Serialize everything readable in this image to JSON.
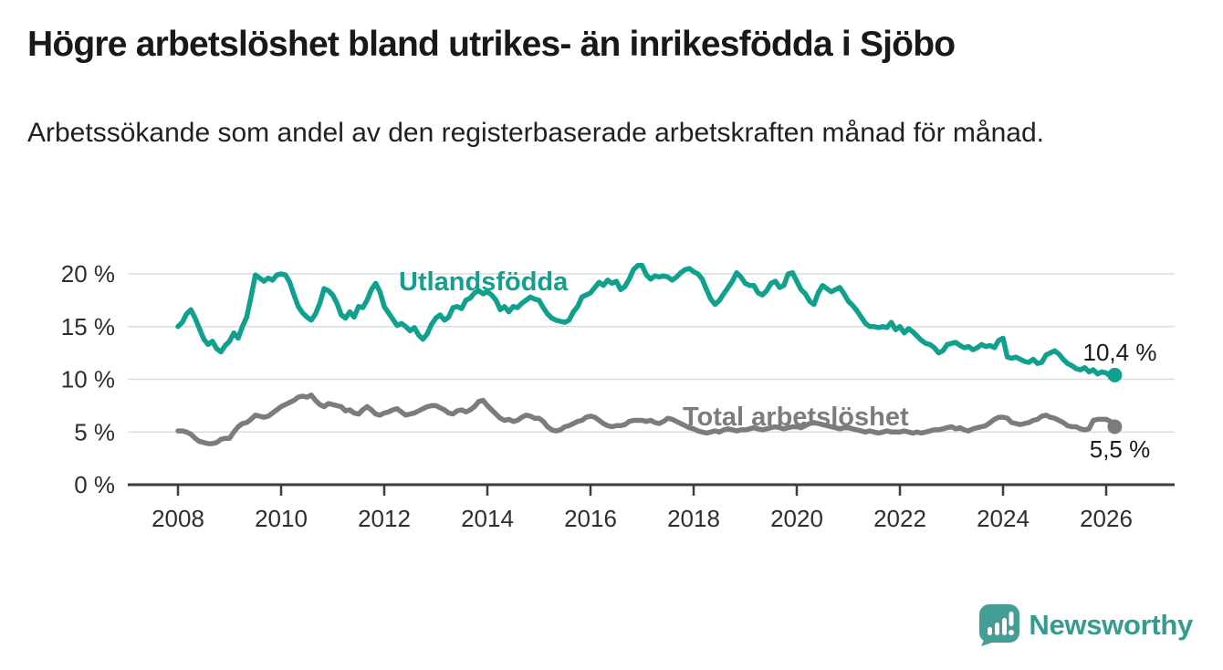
{
  "header": {
    "title": "Högre arbetslöshet bland utrikes- än inrikesfödda i Sjöbo",
    "subtitle": "Arbetssökande som andel av den registerbaserade arbetskraften månad för månad."
  },
  "chart_data": {
    "type": "line",
    "title": "Högre arbetslöshet bland utrikes- än inrikesfödda i Sjöbo",
    "subtitle": "Arbetssökande som andel av den registerbaserade arbetskraften månad för månad.",
    "x_unit": "monthly points, Jan 2008 – Mar 2026",
    "x_range": [
      2008.0,
      2026.25
    ],
    "ylim": [
      0,
      21.5
    ],
    "grid": "horizontal",
    "legend_position": "inline-labels-on-lines",
    "colors": {
      "grid": "#dcdcdc",
      "axis": "#3d3d3d"
    },
    "y_ticks": [
      {
        "value": 0,
        "label": "0 %"
      },
      {
        "value": 5,
        "label": "5 %"
      },
      {
        "value": 10,
        "label": "10 %"
      },
      {
        "value": 15,
        "label": "15 %"
      },
      {
        "value": 20,
        "label": "20 %"
      }
    ],
    "x_ticks": [
      {
        "value": 2008,
        "label": "2008"
      },
      {
        "value": 2010,
        "label": "2010"
      },
      {
        "value": 2012,
        "label": "2012"
      },
      {
        "value": 2014,
        "label": "2014"
      },
      {
        "value": 2016,
        "label": "2016"
      },
      {
        "value": 2018,
        "label": "2018"
      },
      {
        "value": 2020,
        "label": "2020"
      },
      {
        "value": 2022,
        "label": "2022"
      },
      {
        "value": 2024,
        "label": "2024"
      },
      {
        "value": 2026,
        "label": "2026"
      }
    ],
    "series": [
      {
        "id": "utlandsfodda",
        "name": "Utlandsfödda",
        "color": "#10a08e",
        "end_label": "10,4 %",
        "end_value": 10.4,
        "start": "2008-01",
        "frequency": "monthly",
        "values": [
          15.0,
          15.4,
          16.2,
          16.6,
          15.8,
          14.8,
          13.8,
          13.3,
          13.6,
          12.9,
          12.6,
          13.2,
          13.6,
          14.4,
          13.9,
          15.0,
          15.9,
          17.8,
          19.9,
          19.6,
          19.3,
          19.6,
          19.4,
          19.9,
          20.0,
          19.9,
          19.2,
          18.0,
          16.9,
          16.3,
          15.9,
          15.6,
          16.2,
          17.2,
          18.6,
          18.4,
          18.0,
          17.2,
          16.1,
          15.8,
          16.4,
          15.9,
          16.9,
          16.8,
          17.5,
          18.5,
          19.1,
          18.3,
          16.9,
          16.3,
          15.7,
          15.1,
          15.3,
          15.0,
          14.6,
          14.9,
          14.2,
          13.8,
          14.3,
          15.2,
          15.8,
          16.1,
          15.6,
          15.9,
          16.8,
          16.9,
          16.7,
          17.5,
          17.7,
          18.2,
          18.4,
          18.1,
          18.3,
          18.0,
          17.5,
          16.6,
          16.9,
          16.4,
          16.9,
          16.8,
          17.2,
          17.5,
          17.8,
          17.6,
          17.5,
          16.8,
          16.2,
          15.8,
          15.6,
          15.5,
          15.4,
          15.6,
          16.4,
          16.9,
          17.8,
          18.0,
          18.2,
          18.7,
          19.2,
          18.9,
          19.4,
          19.1,
          19.3,
          18.5,
          18.8,
          19.5,
          20.4,
          20.8,
          20.8,
          19.9,
          19.5,
          19.8,
          19.7,
          19.8,
          19.7,
          19.4,
          19.7,
          20.1,
          20.4,
          20.5,
          20.2,
          20.0,
          19.5,
          18.5,
          17.6,
          17.1,
          17.5,
          18.1,
          18.7,
          19.3,
          20.1,
          19.7,
          19.1,
          18.9,
          18.9,
          18.2,
          18.0,
          18.4,
          19.1,
          19.3,
          18.7,
          18.9,
          20.0,
          20.1,
          19.3,
          18.5,
          18.1,
          17.4,
          17.1,
          18.2,
          18.9,
          18.6,
          18.3,
          18.5,
          18.7,
          18.1,
          17.4,
          17.0,
          16.5,
          15.9,
          15.3,
          15.0,
          15.0,
          14.9,
          15.0,
          14.9,
          15.4,
          14.7,
          15.0,
          14.4,
          14.8,
          14.5,
          14.1,
          13.7,
          13.4,
          13.3,
          13.0,
          12.5,
          12.7,
          13.3,
          13.4,
          13.5,
          13.2,
          13.0,
          13.1,
          12.8,
          13.0,
          13.3,
          13.1,
          13.2,
          13.0,
          13.7,
          13.9,
          12.1,
          12.0,
          12.1,
          11.9,
          11.7,
          11.6,
          11.9,
          11.5,
          11.6,
          12.3,
          12.5,
          12.7,
          12.4,
          11.9,
          11.5,
          11.3,
          11.0,
          10.9,
          11.1,
          10.7,
          10.9,
          10.5,
          10.7,
          10.6,
          10.3,
          10.4
        ]
      },
      {
        "id": "total",
        "name": "Total arbetslöshet",
        "color": "#7c7c7c",
        "end_label": "5,5 %",
        "end_value": 5.5,
        "start": "2008-01",
        "frequency": "monthly",
        "values": [
          5.1,
          5.1,
          5.0,
          4.8,
          4.4,
          4.1,
          4.0,
          3.9,
          3.9,
          4.0,
          4.3,
          4.4,
          4.4,
          5.0,
          5.5,
          5.8,
          5.9,
          6.2,
          6.6,
          6.5,
          6.4,
          6.5,
          6.8,
          7.1,
          7.4,
          7.6,
          7.8,
          8.0,
          8.3,
          8.4,
          8.3,
          8.5,
          8.0,
          7.6,
          7.4,
          7.7,
          7.6,
          7.5,
          7.4,
          7.0,
          7.1,
          6.8,
          6.7,
          7.1,
          7.4,
          7.1,
          6.7,
          6.6,
          6.8,
          6.9,
          7.1,
          7.2,
          6.9,
          6.6,
          6.7,
          6.8,
          7.0,
          7.2,
          7.4,
          7.5,
          7.5,
          7.3,
          7.1,
          6.8,
          6.7,
          7.0,
          7.1,
          6.9,
          7.1,
          7.4,
          7.9,
          8.0,
          7.5,
          7.1,
          6.7,
          6.3,
          6.1,
          6.2,
          6.0,
          6.1,
          6.4,
          6.6,
          6.5,
          6.3,
          6.3,
          6.0,
          5.5,
          5.2,
          5.1,
          5.2,
          5.5,
          5.6,
          5.8,
          6.0,
          6.1,
          6.4,
          6.5,
          6.4,
          6.1,
          5.8,
          5.6,
          5.5,
          5.6,
          5.6,
          5.7,
          6.0,
          6.1,
          6.1,
          6.1,
          6.0,
          6.1,
          5.9,
          5.8,
          6.0,
          6.3,
          6.2,
          6.0,
          5.8,
          5.6,
          5.4,
          5.3,
          5.1,
          5.0,
          4.9,
          5.0,
          5.1,
          5.0,
          5.2,
          5.3,
          5.2,
          5.1,
          5.2,
          5.2,
          5.3,
          5.4,
          5.3,
          5.2,
          5.3,
          5.4,
          5.5,
          5.4,
          5.3,
          5.4,
          5.5,
          5.5,
          5.4,
          5.6,
          5.8,
          5.9,
          5.8,
          5.7,
          5.6,
          5.5,
          5.4,
          5.3,
          5.4,
          5.4,
          5.3,
          5.2,
          5.1,
          5.0,
          5.1,
          5.0,
          4.9,
          5.0,
          5.1,
          5.0,
          5.0,
          5.0,
          5.1,
          5.0,
          4.9,
          5.0,
          4.9,
          5.0,
          5.1,
          5.2,
          5.2,
          5.3,
          5.4,
          5.5,
          5.3,
          5.4,
          5.2,
          5.1,
          5.3,
          5.4,
          5.5,
          5.6,
          5.9,
          6.2,
          6.4,
          6.4,
          6.3,
          5.9,
          5.8,
          5.7,
          5.8,
          5.9,
          6.1,
          6.2,
          6.5,
          6.6,
          6.4,
          6.3,
          6.1,
          5.9,
          5.6,
          5.5,
          5.5,
          5.3,
          5.2,
          5.3,
          6.1,
          6.2,
          6.2,
          6.2,
          6.0,
          5.5
        ]
      }
    ]
  },
  "footer": {
    "brand": "Newsworthy"
  }
}
